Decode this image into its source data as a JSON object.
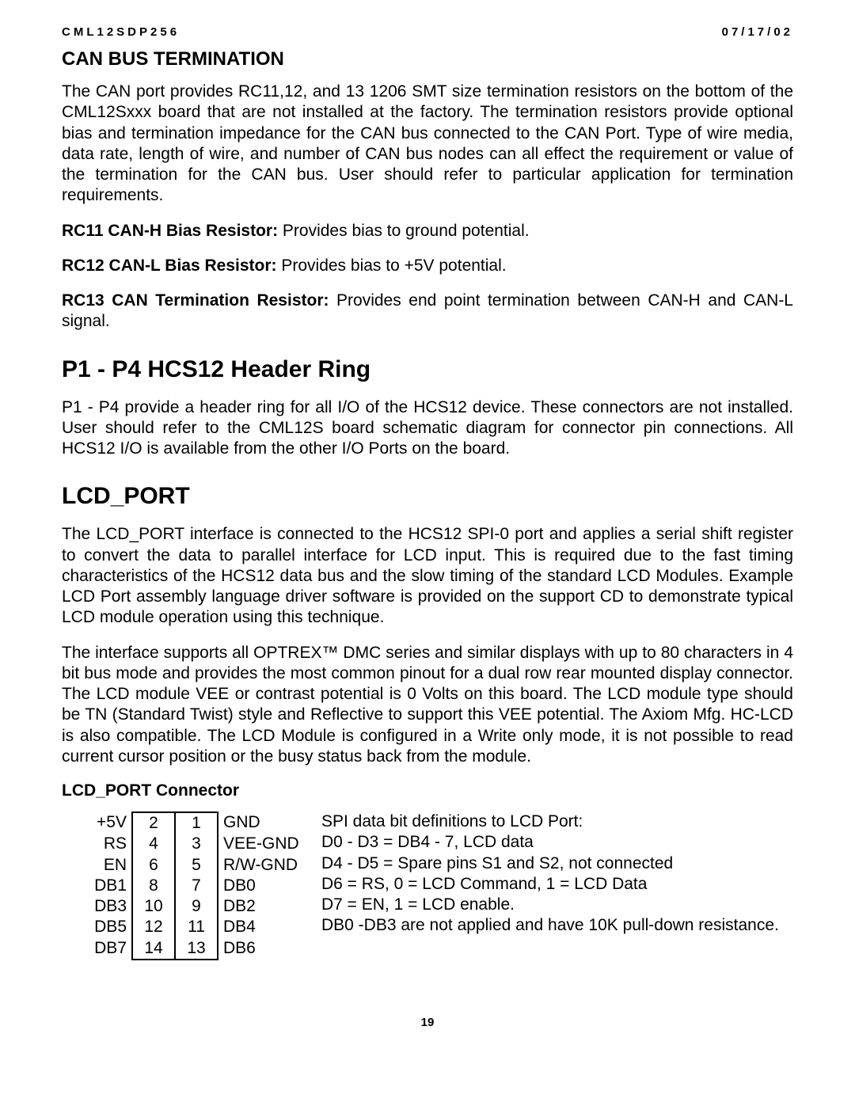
{
  "header": {
    "left": "CML12SDP256",
    "right": "07/17/02"
  },
  "sec1": {
    "title": "CAN BUS TERMINATION",
    "p1": "The CAN port provides RC11,12, and 13 1206 SMT size termination resistors on the bottom of the CML12Sxxx board that are not installed at the factory.  The termination resistors provide optional bias and termination impedance for the CAN bus connected to the CAN Port.  Type of wire media, data rate, length of wire, and number of CAN bus nodes can all effect the requirement or value of the termination for the CAN bus.  User should refer to particular application for termination requirements.",
    "rc11_b": "RC11 CAN-H Bias Resistor:",
    "rc11_t": " Provides bias to ground potential.",
    "rc12_b": "RC12 CAN-L Bias Resistor:",
    "rc12_t": " Provides bias to +5V potential.",
    "rc13_b": "RC13 CAN Termination Resistor:",
    "rc13_t": " Provides end point termination between CAN-H and CAN-L signal."
  },
  "sec2": {
    "title": "P1 - P4 HCS12 Header Ring",
    "p1": "P1 - P4 provide a header ring for all I/O of the HCS12 device.  These connectors are not installed.  User should refer to the CML12S board schematic diagram for connector pin connections.  All HCS12 I/O is available from the other I/O Ports on the board."
  },
  "sec3": {
    "title": "LCD_PORT",
    "p1": "The LCD_PORT interface is connected to the HCS12 SPI-0 port and applies a serial shift register to convert the data to parallel interface for LCD input. This is required due to the fast timing characteristics of the HCS12 data bus and the slow timing of the standard LCD Modules. Example LCD Port assembly language driver software is provided on the support CD to demonstrate typical LCD module operation using this technique.",
    "p2": "The interface supports all OPTREX™ DMC series and similar displays with up to 80 characters in 4 bit bus mode and provides the most common pinout for a dual row rear mounted display connector.   The LCD module VEE or contrast potential is 0 Volts on this board.  The LCD module type should be TN (Standard Twist) style and Reflective to support this VEE potential.  The Axiom Mfg. HC-LCD is also compatible.  The LCD Module is configured in a Write only mode, it is not possible to read current cursor position or the busy status back from the module.",
    "subhead": "LCD_PORT Connector",
    "rows": [
      {
        "l": "+5V",
        "a": "2",
        "b": "1",
        "r": "GND"
      },
      {
        "l": "RS",
        "a": "4",
        "b": "3",
        "r": "VEE-GND"
      },
      {
        "l": "EN",
        "a": "6",
        "b": "5",
        "r": "R/W-GND"
      },
      {
        "l": "DB1",
        "a": "8",
        "b": "7",
        "r": "DB0"
      },
      {
        "l": "DB3",
        "a": "10",
        "b": "9",
        "r": "DB2"
      },
      {
        "l": "DB5",
        "a": "12",
        "b": "11",
        "r": "DB4"
      },
      {
        "l": "DB7",
        "a": "14",
        "b": "13",
        "r": "DB6"
      }
    ],
    "defs": [
      "SPI data bit definitions to LCD Port:",
      "D0 - D3 = DB4 - 7, LCD data",
      "D4 - D5 = Spare pins S1 and S2, not connected",
      "D6 = RS, 0 = LCD Command, 1 = LCD Data",
      "D7 = EN, 1 = LCD enable.",
      "DB0 -DB3 are not applied and have 10K pull-down resistance."
    ]
  },
  "pagenum": "19"
}
